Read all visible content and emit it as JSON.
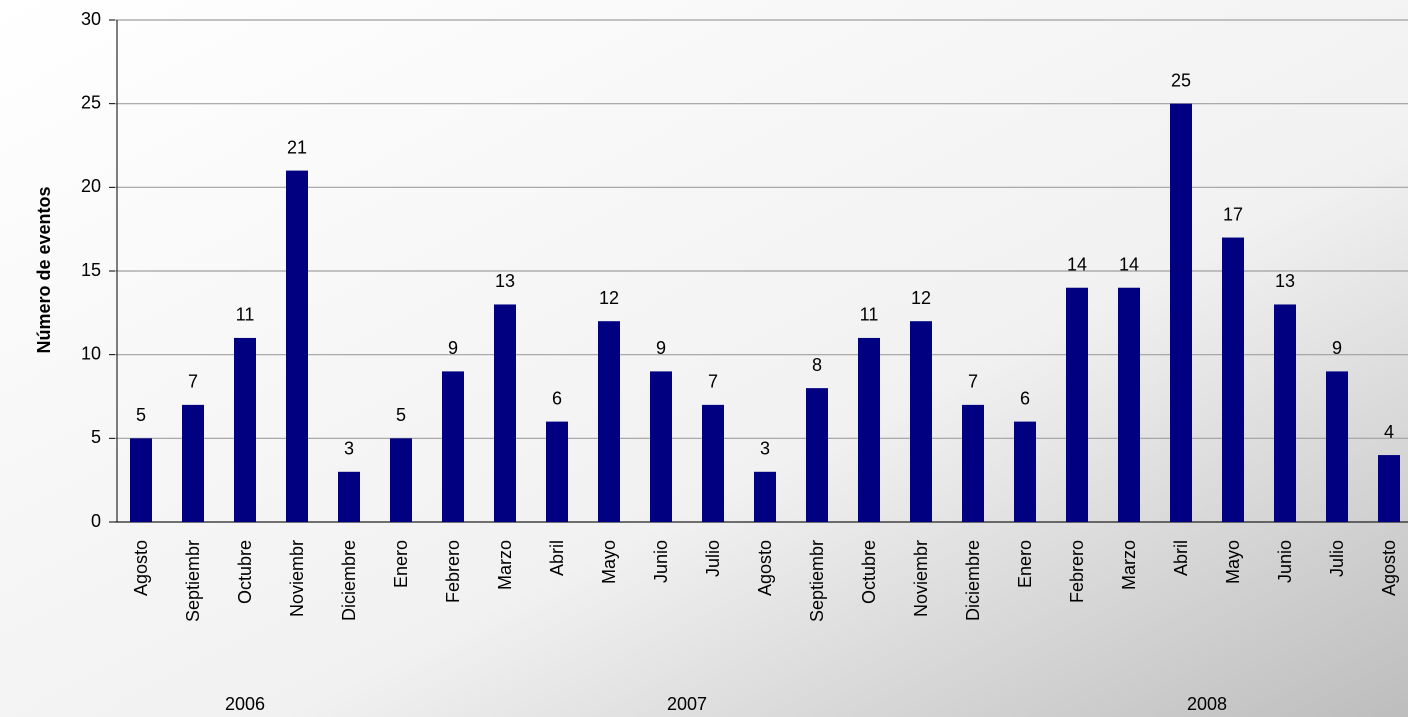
{
  "chart_data": {
    "type": "bar",
    "y_label": "Número de eventos",
    "categories": [
      "Agosto",
      "Septiembr",
      "Octubre",
      "Noviembr",
      "Diciembre",
      "Enero",
      "Febrero",
      "Marzo",
      "Abril",
      "Mayo",
      "Junio",
      "Julio",
      "Agosto",
      "Septiembr",
      "Octubre",
      "Noviembr",
      "Diciembre",
      "Enero",
      "Febrero",
      "Marzo",
      "Abril",
      "Mayo",
      "Junio",
      "Julio",
      "Agosto"
    ],
    "values": [
      5,
      7,
      11,
      21,
      3,
      5,
      9,
      13,
      6,
      12,
      9,
      7,
      3,
      8,
      11,
      12,
      7,
      6,
      14,
      14,
      25,
      17,
      13,
      9,
      4
    ],
    "year_groups": [
      {
        "label": "2006",
        "count": 5
      },
      {
        "label": "2007",
        "count": 12
      },
      {
        "label": "2008",
        "count": 8
      }
    ],
    "color": "#000080",
    "ylim": [
      0,
      30
    ],
    "yticks": [
      0,
      5,
      10,
      15,
      20,
      25,
      30
    ],
    "grid": true
  }
}
